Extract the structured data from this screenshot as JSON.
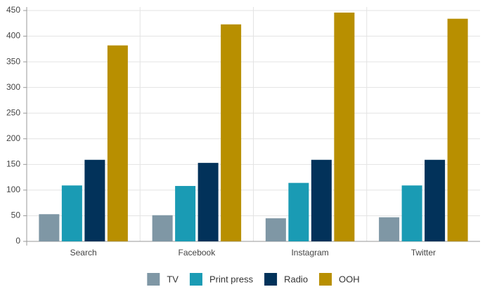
{
  "chart_data": {
    "type": "bar",
    "categories": [
      "Search",
      "Facebook",
      "Instagram",
      "Twitter"
    ],
    "series": [
      {
        "name": "TV",
        "color": "#7f97a5",
        "values": [
          53,
          51,
          45,
          47
        ]
      },
      {
        "name": "Print press",
        "color": "#1a9bb4",
        "values": [
          109,
          108,
          114,
          109
        ]
      },
      {
        "name": "Radio",
        "color": "#02325a",
        "values": [
          159,
          153,
          159,
          159
        ]
      },
      {
        "name": "OOH",
        "color": "#b88f00",
        "values": [
          382,
          423,
          446,
          434
        ]
      }
    ],
    "ylim": [
      0,
      450
    ],
    "yticks": [
      0,
      50,
      100,
      150,
      200,
      250,
      300,
      350,
      400,
      450
    ],
    "grid": true,
    "legend": "bottom"
  }
}
